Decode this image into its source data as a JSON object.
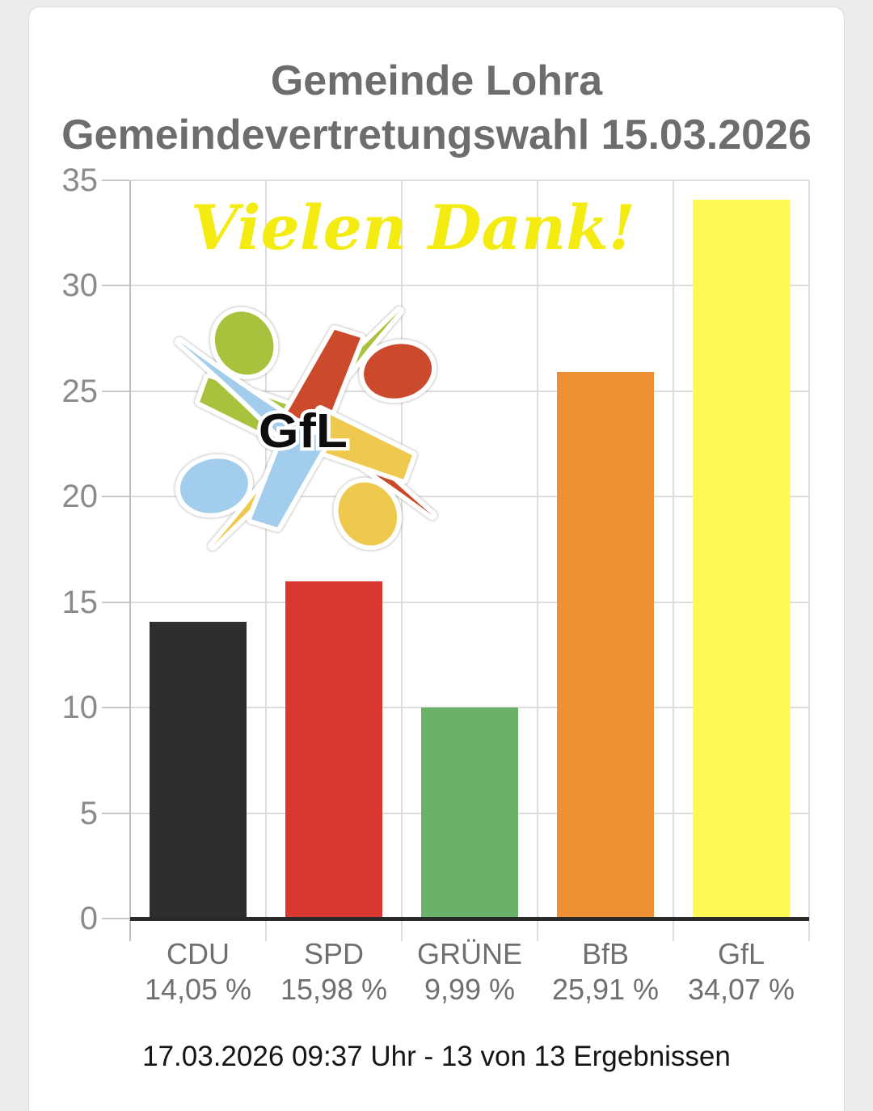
{
  "page": {
    "background": "#ececec",
    "card_background": "#ffffff"
  },
  "header": {
    "title_line1": "Gemeinde Lohra",
    "title_line2": "Gemeindevertretungswahl 15.03.2026"
  },
  "overlay": {
    "thanks_text": "Vielen Dank!",
    "thanks_color": "#f4eb10"
  },
  "logo": {
    "label": "GfL",
    "colors": {
      "green": "#a9c23d",
      "red": "#cc4a2c",
      "yellow": "#eec94e",
      "blue": "#a3cdec"
    }
  },
  "chart_data": {
    "type": "bar",
    "title": "Gemeinde Lohra Gemeindevertretungswahl 15.03.2026",
    "categories": [
      "CDU",
      "SPD",
      "GRÜNE",
      "BfB",
      "GfL"
    ],
    "values": [
      14.05,
      15.98,
      9.99,
      25.91,
      34.07
    ],
    "display_values": [
      "14,05 %",
      "15,98 %",
      "9,99 %",
      "25,91 %",
      "34,07 %"
    ],
    "bar_colors": [
      "#2f2d2e",
      "#d93831",
      "#6cb168",
      "#ee8f33",
      "#fdfa55"
    ],
    "xlabel": "",
    "ylabel": "",
    "ylim": [
      0,
      35
    ],
    "yticks": [
      0,
      5,
      10,
      15,
      20,
      25,
      30,
      35
    ],
    "grid": true,
    "legend": false,
    "grid_color": "#dcdcdc",
    "axis_color": "#2a2a2a"
  },
  "footer": {
    "status_text": "17.03.2026 09:37 Uhr - 13 von 13 Ergebnissen"
  }
}
